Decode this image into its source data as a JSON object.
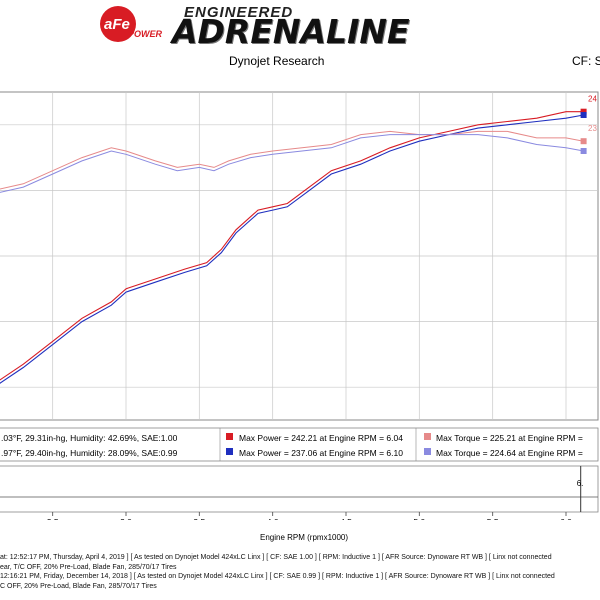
{
  "header": {
    "logo_text": "aFe POWER",
    "subtitle": "ENGINEERED",
    "title": "ADRENALINE",
    "research": "Dynojet Research",
    "cf": "CF: S"
  },
  "colors": {
    "run1": "#d81c24",
    "run2": "#1f2fbf",
    "run1_torque": "#e68a8a",
    "run2_torque": "#8a8ae0",
    "grid": "#c8c8c8"
  },
  "chart_data": {
    "type": "line",
    "xlabel": "Engine RPM (rpmx1000)",
    "xlim": [
      2.1,
      6.15
    ],
    "ylim": [
      0,
      1
    ],
    "x_ticks": [
      "2.5",
      "3.0",
      "3.5",
      "4.0",
      "4.5",
      "5.0",
      "5.5",
      "6.0"
    ],
    "grid": true,
    "series": [
      {
        "id": "power1",
        "x": [
          2.1,
          2.3,
          2.5,
          2.7,
          2.9,
          3.0,
          3.2,
          3.4,
          3.55,
          3.65,
          3.75,
          3.9,
          4.0,
          4.1,
          4.25,
          4.4,
          4.6,
          4.8,
          5.0,
          5.2,
          5.4,
          5.6,
          5.8,
          6.0,
          6.12
        ],
        "y": [
          0.11,
          0.17,
          0.24,
          0.31,
          0.36,
          0.4,
          0.43,
          0.46,
          0.48,
          0.52,
          0.58,
          0.64,
          0.65,
          0.66,
          0.71,
          0.76,
          0.79,
          0.83,
          0.86,
          0.88,
          0.9,
          0.91,
          0.92,
          0.94,
          0.94
        ]
      },
      {
        "id": "power2",
        "x": [
          2.1,
          2.3,
          2.5,
          2.7,
          2.9,
          3.0,
          3.2,
          3.4,
          3.55,
          3.65,
          3.75,
          3.9,
          4.0,
          4.1,
          4.25,
          4.4,
          4.6,
          4.8,
          5.0,
          5.2,
          5.4,
          5.6,
          5.8,
          6.0,
          6.12
        ],
        "y": [
          0.1,
          0.16,
          0.23,
          0.3,
          0.35,
          0.39,
          0.42,
          0.45,
          0.47,
          0.51,
          0.57,
          0.63,
          0.64,
          0.65,
          0.7,
          0.75,
          0.78,
          0.82,
          0.85,
          0.87,
          0.89,
          0.9,
          0.91,
          0.92,
          0.93
        ]
      },
      {
        "id": "torque1",
        "x": [
          2.1,
          2.3,
          2.5,
          2.7,
          2.9,
          3.0,
          3.2,
          3.35,
          3.5,
          3.6,
          3.7,
          3.85,
          4.0,
          4.2,
          4.4,
          4.6,
          4.8,
          5.0,
          5.2,
          5.4,
          5.6,
          5.8,
          6.0,
          6.12
        ],
        "y": [
          0.7,
          0.72,
          0.76,
          0.8,
          0.83,
          0.82,
          0.79,
          0.77,
          0.78,
          0.77,
          0.79,
          0.81,
          0.82,
          0.83,
          0.84,
          0.87,
          0.88,
          0.87,
          0.87,
          0.88,
          0.88,
          0.86,
          0.86,
          0.85
        ]
      },
      {
        "id": "torque2",
        "x": [
          2.1,
          2.3,
          2.5,
          2.7,
          2.9,
          3.0,
          3.2,
          3.35,
          3.5,
          3.6,
          3.7,
          3.85,
          4.0,
          4.2,
          4.4,
          4.6,
          4.8,
          5.0,
          5.2,
          5.4,
          5.6,
          5.8,
          6.0,
          6.12
        ],
        "y": [
          0.69,
          0.71,
          0.75,
          0.79,
          0.82,
          0.81,
          0.78,
          0.76,
          0.77,
          0.76,
          0.78,
          0.8,
          0.81,
          0.82,
          0.83,
          0.86,
          0.87,
          0.87,
          0.87,
          0.87,
          0.86,
          0.84,
          0.83,
          0.82
        ]
      }
    ],
    "right_labels": [
      {
        "text": "24",
        "series": "power1"
      },
      {
        "text": "23",
        "series": "torque1"
      }
    ],
    "legend_rows": [
      {
        "conditions": ".03°F, 29.31in-hg, Humidity: 42.69%, SAE:1.00",
        "power": "Max Power = 242.21 at Engine RPM = 6.04",
        "torque": "Max Torque = 225.21 at Engine RPM ="
      },
      {
        "conditions": ".97°F, 29.40in-hg, Humidity: 28.09%, SAE:0.99",
        "power": "Max Power = 237.06 at Engine RPM = 6.10",
        "torque": "Max Torque = 224.64 at Engine RPM ="
      }
    ],
    "cursor_label": "6."
  },
  "footer": {
    "line1": "at: 12:52:17 PM, Thursday, April 4, 2019 ] [ As tested on Dynojet Model 424xLC Linx ] [ CF: SAE 1.00 ] [ RPM: Inductive 1 ] [ AFR Source: Dynoware RT WB ] [ Linx not connected",
    "line2": "ear, T/C OFF, 20% Pre-Load, Blade Fan, 285/70/17 Tires",
    "line3": "12:16:21 PM, Friday, December 14, 2018 ] [ As tested on Dynojet Model 424xLC Linx ] [ CF: SAE 0.99 ] [ RPM: Inductive 1 ] [ AFR Source: Dynoware RT WB ] [ Linx not connected",
    "line4": "C OFF, 20% Pre-Load, Blade Fan, 285/70/17 Tires"
  }
}
